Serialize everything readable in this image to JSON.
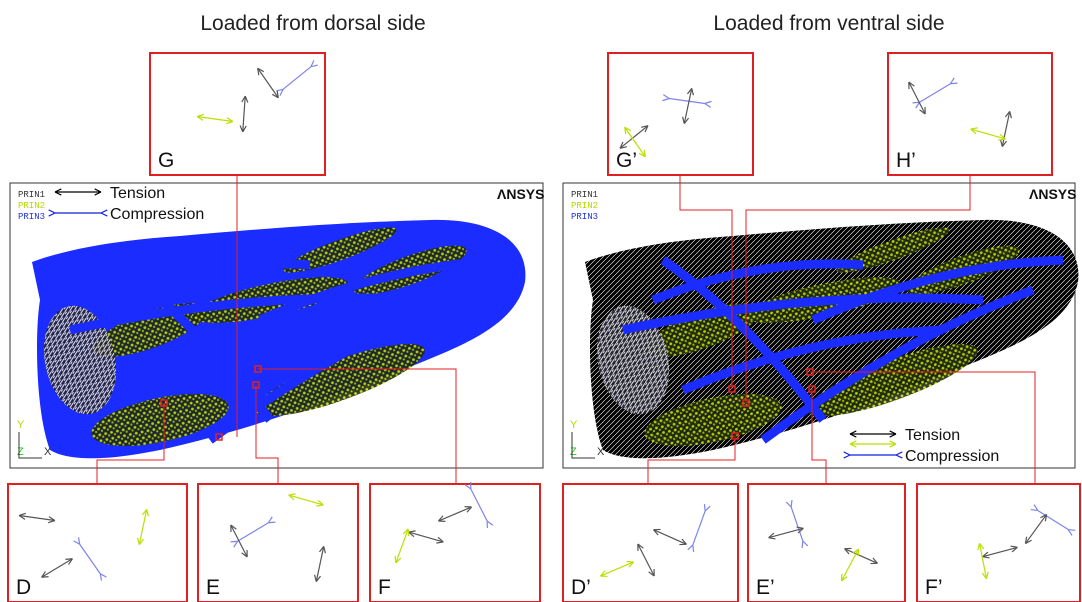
{
  "panels": [
    {
      "title": "Loaded from dorsal side",
      "prin": [
        "PRIN1",
        "PRIN2",
        "PRIN3"
      ],
      "legend": {
        "tension": "Tension",
        "compression": "Compression"
      },
      "logo": "ΛNSYS",
      "axes": {
        "y": "Y",
        "z": "Z",
        "x": "X"
      },
      "insets": [
        "G",
        "D",
        "E",
        "F"
      ]
    },
    {
      "title": "Loaded from ventral side",
      "prin": [
        "PRIN1",
        "PRIN2",
        "PRIN3"
      ],
      "legend": {
        "tension": "Tension",
        "compression": "Compression"
      },
      "logo": "ΛNSYS",
      "axes": {
        "y": "Y",
        "z": "Z",
        "x": "X"
      },
      "insets": [
        "G’",
        "H’",
        "D’",
        "E’",
        "F’"
      ]
    }
  ]
}
